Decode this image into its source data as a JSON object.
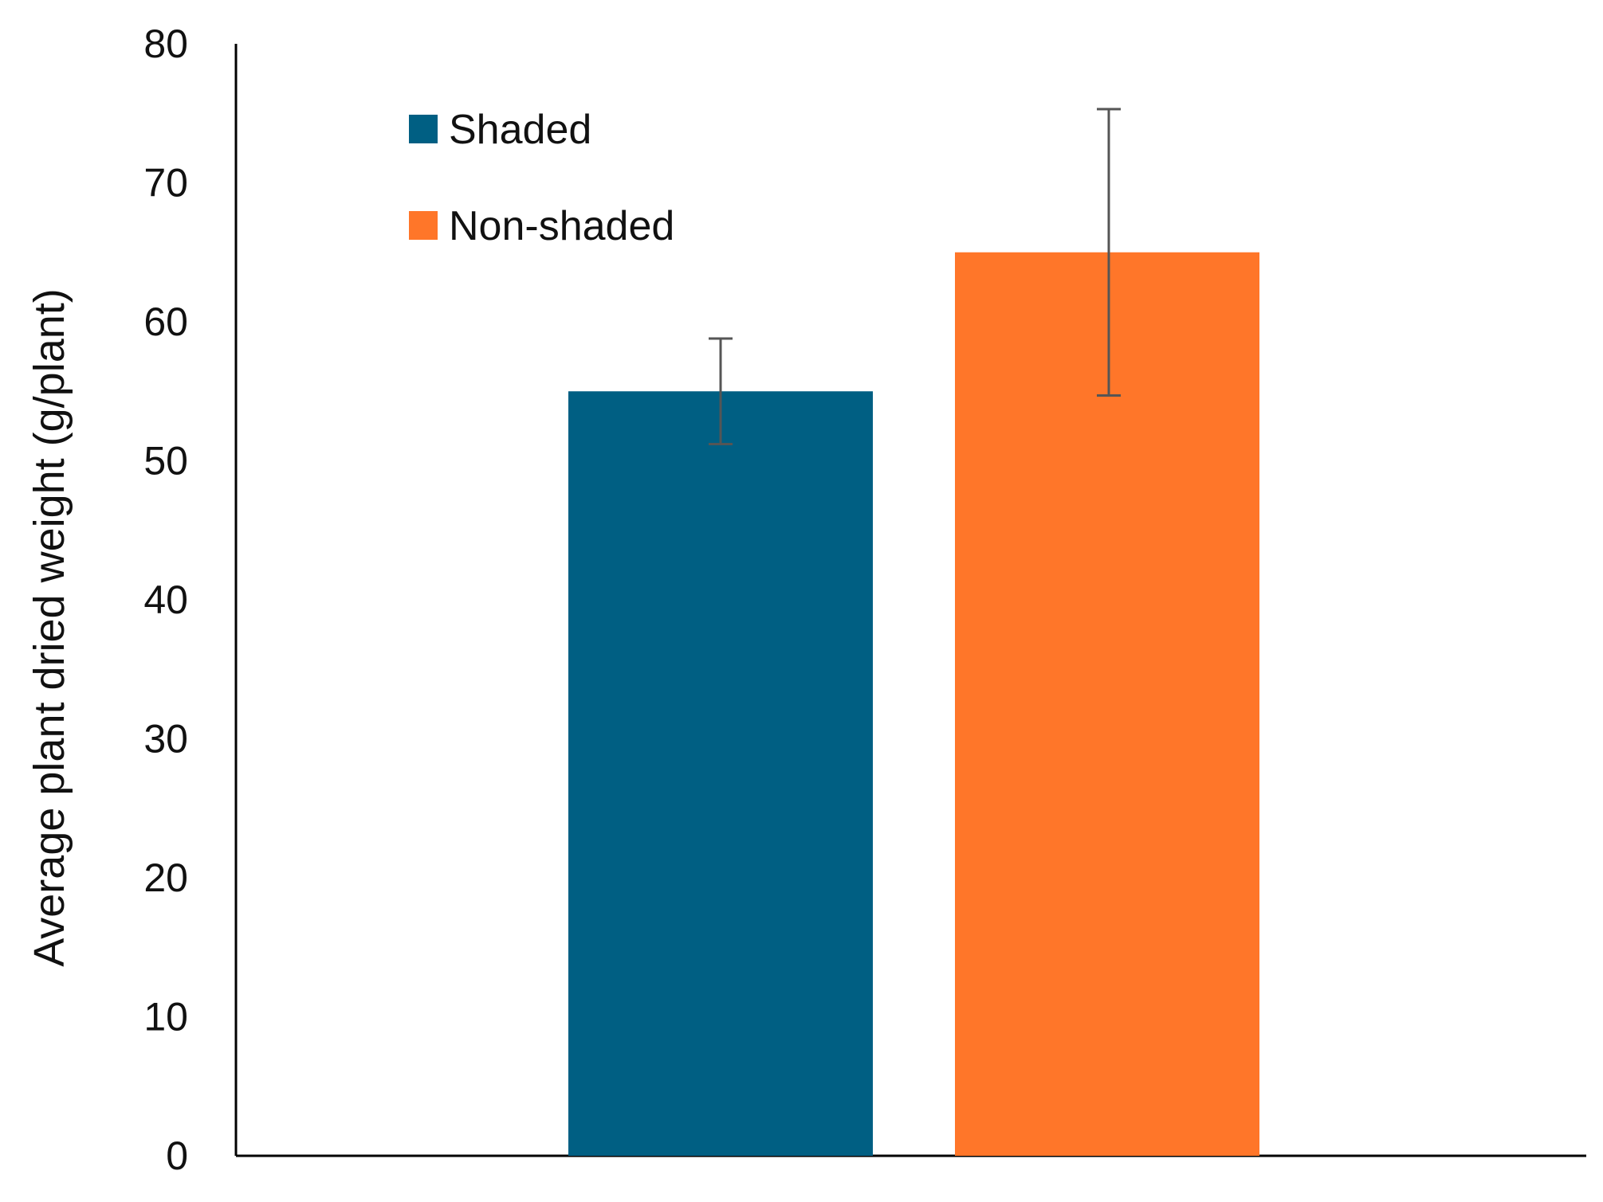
{
  "chart_data": {
    "type": "bar",
    "title": "",
    "xlabel": "",
    "ylabel": "Average plant dried weight (g/plant)",
    "ylim": [
      0,
      80
    ],
    "yticks": [
      "0",
      "10",
      "20",
      "30",
      "40",
      "50",
      "60",
      "70",
      "80"
    ],
    "grid": false,
    "legend_position": "top-left",
    "series": [
      {
        "name": "Shaded",
        "value": 55,
        "error_low": 51.2,
        "error_high": 58.8,
        "color": "#005F83"
      },
      {
        "name": "Non-shaded",
        "value": 65,
        "error_low": 54.7,
        "error_high": 75.3,
        "color": "#FF7629"
      }
    ]
  }
}
